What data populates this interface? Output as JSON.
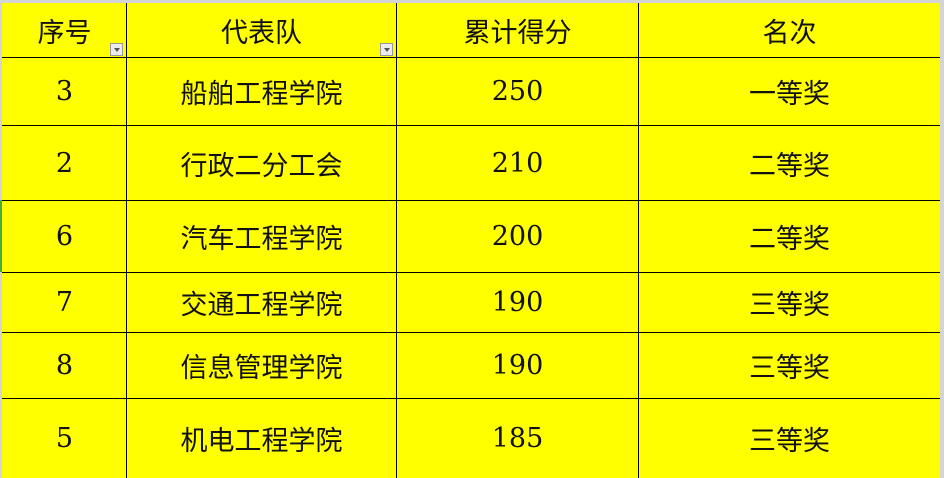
{
  "headers": [
    "序号",
    "代表队",
    "累计得分",
    "名次"
  ],
  "rows": [
    [
      "3",
      "船舶工程学院",
      "250",
      "一等奖"
    ],
    [
      "2",
      "行政二分工会",
      "210",
      "二等奖"
    ],
    [
      "6",
      "汽车工程学院",
      "200",
      "二等奖"
    ],
    [
      "7",
      "交通工程学院",
      "190",
      "三等奖"
    ],
    [
      "8",
      "信息管理学院",
      "190",
      "三等奖"
    ],
    [
      "5",
      "机电工程学院",
      "185",
      "三等奖"
    ]
  ],
  "colors": {
    "cell_fill": "#ffff00",
    "grid": "#000000"
  }
}
